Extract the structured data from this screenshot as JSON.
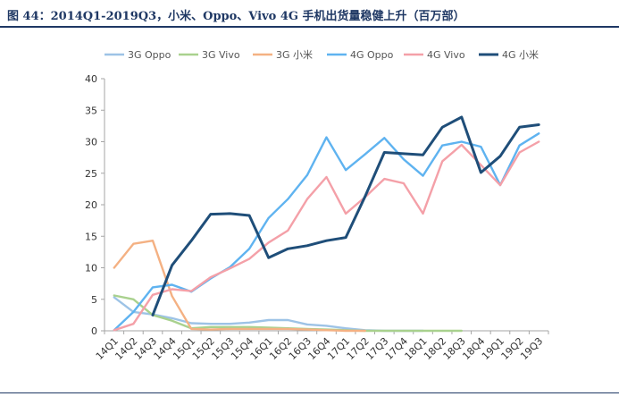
{
  "header": {
    "title": "图 44：2014Q1-2019Q3，小米、Oppo、Vivo 4G 手机出货量稳健上升（百万部）"
  },
  "chart_data": {
    "type": "line",
    "title": "",
    "xlabel": "",
    "ylabel": "",
    "ylim": [
      0,
      40
    ],
    "yticks": [
      0,
      5,
      10,
      15,
      20,
      25,
      30,
      35,
      40
    ],
    "grid": false,
    "legend": "top",
    "categories": [
      "14Q1",
      "14Q2",
      "14Q3",
      "14Q4",
      "15Q1",
      "15Q2",
      "15Q3",
      "15Q4",
      "16Q1",
      "16Q2",
      "16Q3",
      "16Q4",
      "17Q1",
      "17Q2",
      "17Q3",
      "17Q4",
      "18Q1",
      "18Q2",
      "18Q3",
      "18Q4",
      "19Q1",
      "19Q2",
      "19Q3"
    ],
    "series": [
      {
        "name": "3G Oppo",
        "color": "#9dc3e6",
        "values": [
          5.3,
          3.0,
          2.6,
          2.0,
          1.2,
          1.1,
          1.1,
          1.3,
          1.7,
          1.7,
          1.0,
          0.8,
          0.4,
          0.1,
          0.0,
          0.0,
          0.0,
          null,
          null,
          null,
          null,
          null,
          null
        ]
      },
      {
        "name": "3G Vivo",
        "color": "#a9d18e",
        "values": [
          5.6,
          5.0,
          2.5,
          1.6,
          0.4,
          0.6,
          0.6,
          0.6,
          0.5,
          0.4,
          0.3,
          0.2,
          0.1,
          0.0,
          0.0,
          0.0,
          0.0,
          0.0,
          0.0,
          null,
          null,
          null,
          null
        ]
      },
      {
        "name": "3G 小米",
        "color": "#f4b183",
        "values": [
          10.0,
          13.8,
          14.3,
          5.5,
          0.3,
          0.2,
          0.3,
          0.3,
          0.3,
          0.3,
          0.2,
          0.1,
          0.0,
          0.0,
          null,
          null,
          null,
          null,
          null,
          null,
          null,
          null,
          null
        ]
      },
      {
        "name": "4G Oppo",
        "color": "#5fb3f0",
        "values": [
          0.1,
          3.0,
          6.9,
          7.3,
          6.2,
          8.3,
          10.1,
          13.0,
          17.9,
          20.9,
          24.7,
          30.7,
          25.5,
          28.0,
          30.6,
          27.2,
          24.6,
          29.4,
          30.0,
          29.2,
          23.1,
          29.4,
          31.3
        ]
      },
      {
        "name": "4G Vivo",
        "color": "#f4a0a8",
        "values": [
          0.1,
          1.1,
          5.7,
          6.6,
          6.3,
          8.5,
          9.9,
          11.4,
          14.0,
          15.9,
          20.9,
          24.4,
          18.6,
          21.2,
          24.1,
          23.4,
          18.6,
          26.9,
          29.5,
          26.3,
          23.1,
          28.3,
          30.0
        ]
      },
      {
        "name": "4G 小米",
        "color": "#1f4e79",
        "values": [
          null,
          null,
          2.5,
          10.4,
          14.3,
          18.5,
          18.6,
          18.3,
          11.6,
          13.0,
          13.5,
          14.3,
          14.8,
          21.3,
          28.3,
          28.1,
          27.9,
          32.3,
          33.9,
          25.1,
          27.7,
          32.3,
          32.7
        ]
      }
    ]
  }
}
